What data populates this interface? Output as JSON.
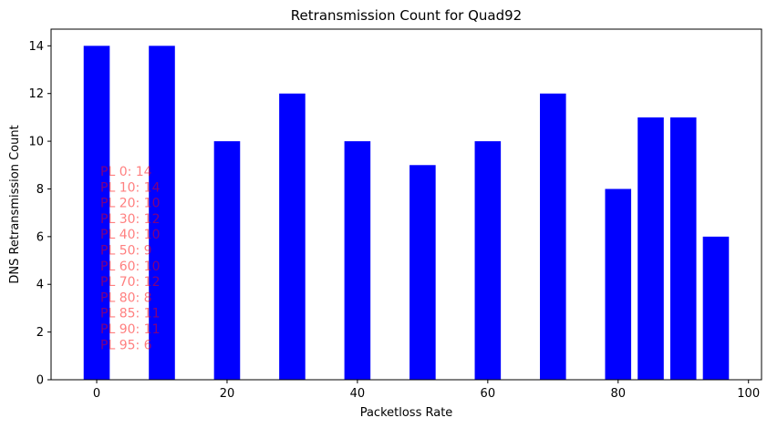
{
  "chart_data": {
    "type": "bar",
    "title": "Retransmission Count for Quad92",
    "xlabel": "Packetloss Rate",
    "ylabel": "DNS Retransmission Count",
    "x": [
      0,
      10,
      20,
      30,
      40,
      50,
      60,
      70,
      80,
      85,
      90,
      95
    ],
    "values": [
      14,
      14,
      10,
      12,
      10,
      9,
      10,
      12,
      8,
      11,
      11,
      6
    ],
    "xlim": [
      -7,
      102
    ],
    "ylim": [
      0,
      14.7
    ],
    "xticks": [
      0,
      20,
      40,
      60,
      80,
      100
    ],
    "yticks": [
      0,
      2,
      4,
      6,
      8,
      10,
      12,
      14
    ],
    "bar_color": "#0000ff",
    "bar_width": 4,
    "grid": false,
    "annotation_color": "#ff0000",
    "annotations": [
      "PL 0: 14",
      "PL 10: 14",
      "PL 20: 10",
      "PL 30: 12",
      "PL 40: 10",
      "PL 50: 9",
      "PL 60: 10",
      "PL 70: 12",
      "PL 80: 8",
      "PL 85: 11",
      "PL 90: 11",
      "PL 95: 6"
    ]
  }
}
